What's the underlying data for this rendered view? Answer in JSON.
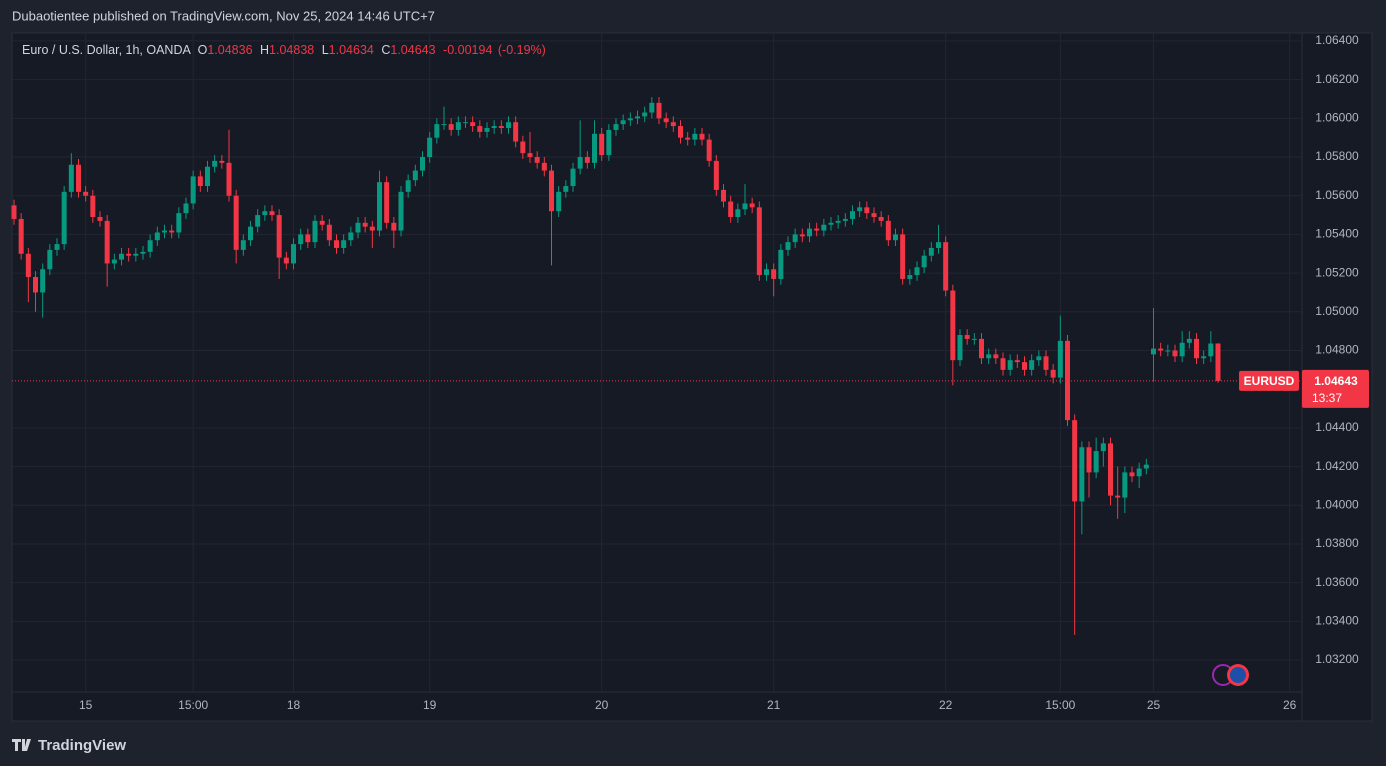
{
  "header": "Dubaotientee published on TradingView.com, Nov 25, 2024 14:46 UTC+7",
  "brand": "TradingView",
  "chart_data": {
    "type": "candlestick",
    "legend": {
      "symbol": "Euro / U.S. Dollar, 1h, OANDA",
      "open_label": "O",
      "high_label": "H",
      "low_label": "L",
      "close_label": "C"
    },
    "change": -0.00194,
    "change_percent": {
      "value": -0.19,
      "label": "(-0.19%)"
    },
    "countdown": "13:37",
    "up_color": "#089981",
    "down_color": "#f23645",
    "grid": true,
    "ylim": [
      1.03035,
      1.06441
    ],
    "yticks": [
      {
        "value": 1.064,
        "label": "1.06400"
      },
      {
        "value": 1.062,
        "label": "1.06200"
      },
      {
        "value": 1.06,
        "label": "1.06000"
      },
      {
        "value": 1.058,
        "label": "1.05800"
      },
      {
        "value": 1.056,
        "label": "1.05600"
      },
      {
        "value": 1.054,
        "label": "1.05400"
      },
      {
        "value": 1.052,
        "label": "1.05200"
      },
      {
        "value": 1.05,
        "label": "1.05000"
      },
      {
        "value": 1.048,
        "label": "1.04800"
      },
      {
        "value": 1.044,
        "label": "1.04400"
      },
      {
        "value": 1.042,
        "label": "1.04200"
      },
      {
        "value": 1.04,
        "label": "1.04000"
      },
      {
        "value": 1.038,
        "label": "1.03800"
      },
      {
        "value": 1.036,
        "label": "1.03600"
      },
      {
        "value": 1.034,
        "label": "1.03400"
      },
      {
        "value": 1.032,
        "label": "1.03200"
      }
    ],
    "categories": [
      null,
      null,
      null,
      null,
      null,
      null,
      null,
      null,
      null,
      null,
      "15",
      null,
      null,
      null,
      null,
      null,
      null,
      null,
      null,
      null,
      null,
      null,
      null,
      null,
      null,
      "15:00",
      null,
      null,
      null,
      null,
      null,
      null,
      null,
      null,
      null,
      null,
      null,
      null,
      null,
      "18",
      null,
      null,
      null,
      null,
      null,
      null,
      null,
      null,
      null,
      null,
      null,
      null,
      null,
      null,
      null,
      null,
      null,
      null,
      "19",
      null,
      null,
      null,
      null,
      null,
      null,
      null,
      null,
      null,
      null,
      null,
      null,
      null,
      null,
      null,
      null,
      null,
      null,
      null,
      null,
      null,
      null,
      null,
      "20",
      null,
      null,
      null,
      null,
      null,
      null,
      null,
      null,
      null,
      null,
      null,
      null,
      null,
      null,
      null,
      null,
      null,
      null,
      null,
      null,
      null,
      null,
      null,
      "21",
      null,
      null,
      null,
      null,
      null,
      null,
      null,
      null,
      null,
      null,
      null,
      null,
      null,
      null,
      null,
      null,
      null,
      null,
      null,
      null,
      null,
      null,
      null,
      "22",
      null,
      null,
      null,
      null,
      null,
      null,
      null,
      null,
      null,
      null,
      null,
      null,
      null,
      null,
      null,
      "15:00",
      null,
      null,
      null,
      null,
      null,
      null,
      null,
      null,
      null,
      null,
      null,
      null,
      "25",
      null,
      null,
      null,
      null,
      null,
      null,
      null,
      null,
      null,
      null,
      null,
      null,
      null,
      null,
      null,
      null,
      null,
      null,
      "26",
      null
    ],
    "series": [
      {
        "name": "EURUSD",
        "open": [
          1.0555,
          1.0548,
          1.053,
          1.0518,
          1.051,
          1.0522,
          1.0532,
          1.0535,
          1.0562,
          1.0576,
          1.0562,
          1.056,
          1.0549,
          1.0547,
          1.0525,
          1.0527,
          1.053,
          1.0529,
          1.053,
          1.0531,
          1.0537,
          1.0541,
          1.0542,
          1.0541,
          1.0551,
          1.0556,
          1.057,
          1.0565,
          1.0575,
          1.0578,
          1.0577,
          1.056,
          1.0532,
          1.0537,
          1.0544,
          1.055,
          1.0552,
          1.055,
          1.0528,
          1.0525,
          1.0535,
          1.054,
          1.0536,
          1.0547,
          1.0545,
          1.0537,
          1.0533,
          1.0537,
          1.0541,
          1.0546,
          1.0544,
          1.0542,
          1.0567,
          1.0546,
          1.0542,
          1.0562,
          1.0568,
          1.0573,
          1.058,
          1.059,
          1.0597,
          1.0597,
          1.0594,
          1.0598,
          1.0598,
          1.0596,
          1.0593,
          1.0595,
          1.0596,
          1.0595,
          1.0598,
          1.0588,
          1.0582,
          1.058,
          1.0577,
          1.0573,
          1.0552,
          1.0562,
          1.0565,
          1.0574,
          1.058,
          1.0577,
          1.0592,
          1.0581,
          1.0594,
          1.0597,
          1.0599,
          1.06,
          1.0601,
          1.0603,
          1.0608,
          1.06,
          1.0598,
          1.0596,
          1.059,
          1.0589,
          1.0592,
          1.0589,
          1.0578,
          1.0563,
          1.0557,
          1.0549,
          1.0553,
          1.0556,
          1.0554,
          1.0519,
          1.0522,
          1.0517,
          1.0532,
          1.0536,
          1.054,
          1.0539,
          1.0543,
          1.0542,
          1.0545,
          1.0546,
          1.0547,
          1.0548,
          1.0552,
          1.0554,
          1.0551,
          1.0549,
          1.0547,
          1.0537,
          1.054,
          1.0517,
          1.0519,
          1.0523,
          1.0529,
          1.0533,
          1.0536,
          1.0511,
          1.0475,
          1.0488,
          1.0486,
          1.0486,
          1.0476,
          1.0478,
          1.0476,
          1.047,
          1.0475,
          1.0474,
          1.047,
          1.0475,
          1.0477,
          1.047,
          1.0466,
          1.0485,
          1.0444,
          1.0402,
          1.043,
          1.0417,
          1.0428,
          1.0432,
          1.0405,
          1.0404,
          1.0417,
          1.0415,
          1.0419,
          1.0478,
          1.0481,
          1.048,
          1.048,
          1.0477,
          1.0484,
          1.0486,
          1.0476,
          1.0477,
          1.04836,
          null,
          null,
          null,
          null,
          null,
          null,
          null,
          null,
          null,
          null,
          null
        ],
        "high": [
          1.0558,
          1.0551,
          1.0533,
          1.0521,
          1.0525,
          1.0535,
          1.0538,
          1.0565,
          1.0582,
          1.0579,
          1.0565,
          1.0563,
          1.0552,
          1.055,
          1.053,
          1.0533,
          1.0533,
          1.0533,
          1.0534,
          1.054,
          1.0544,
          1.0545,
          1.0545,
          1.0554,
          1.0559,
          1.0573,
          1.0573,
          1.0578,
          1.0581,
          1.0581,
          1.0594,
          1.0563,
          1.054,
          1.0547,
          1.0553,
          1.0555,
          1.0555,
          1.0553,
          1.0531,
          1.0538,
          1.0543,
          1.0543,
          1.055,
          1.055,
          1.0548,
          1.054,
          1.054,
          1.0544,
          1.0549,
          1.0549,
          1.0547,
          1.0573,
          1.057,
          1.0549,
          1.0565,
          1.0571,
          1.0576,
          1.0583,
          1.0593,
          1.06,
          1.0606,
          1.06,
          1.0601,
          1.0601,
          1.0601,
          1.0599,
          1.0598,
          1.0599,
          1.0599,
          1.0601,
          1.0601,
          1.0591,
          1.0593,
          1.0583,
          1.058,
          1.0576,
          1.0565,
          1.0568,
          1.0577,
          1.0599,
          1.0583,
          1.0599,
          1.0595,
          1.0597,
          1.06,
          1.0602,
          1.0603,
          1.0604,
          1.0606,
          1.0611,
          1.0611,
          1.0603,
          1.0601,
          1.0599,
          1.0593,
          1.0595,
          1.0595,
          1.0592,
          1.0581,
          1.0566,
          1.056,
          1.0556,
          1.0566,
          1.0559,
          1.0557,
          1.0525,
          1.0525,
          1.0535,
          1.0539,
          1.0543,
          1.0543,
          1.0546,
          1.0546,
          1.0548,
          1.0549,
          1.055,
          1.0551,
          1.0555,
          1.0557,
          1.0557,
          1.0554,
          1.0552,
          1.055,
          1.0543,
          1.0543,
          1.0522,
          1.0526,
          1.0532,
          1.0536,
          1.0545,
          1.0539,
          1.0514,
          1.0491,
          1.0491,
          1.0489,
          1.0489,
          1.0481,
          1.0481,
          1.0479,
          1.0478,
          1.0478,
          1.0477,
          1.0478,
          1.048,
          1.048,
          1.0473,
          1.0498,
          1.0488,
          1.0447,
          1.0433,
          1.0433,
          1.0435,
          1.0435,
          1.0435,
          1.042,
          1.042,
          1.042,
          1.0422,
          1.0424,
          1.0502,
          1.0484,
          1.0483,
          1.0483,
          1.049,
          1.049,
          1.0489,
          1.048,
          1.049,
          1.04838,
          null,
          null,
          null,
          null,
          null,
          null,
          null,
          null,
          null,
          null,
          null
        ],
        "low": [
          1.0545,
          1.0527,
          1.0505,
          1.05,
          1.0497,
          1.0519,
          1.0529,
          1.0532,
          1.0559,
          1.0559,
          1.0557,
          1.0546,
          1.0544,
          1.0513,
          1.0522,
          1.0524,
          1.0526,
          1.0526,
          1.0527,
          1.0528,
          1.0534,
          1.0538,
          1.0538,
          1.0538,
          1.0548,
          1.0553,
          1.0562,
          1.0562,
          1.0572,
          1.0574,
          1.0557,
          1.0525,
          1.0529,
          1.0534,
          1.0541,
          1.0547,
          1.0547,
          1.0517,
          1.0522,
          1.0522,
          1.0532,
          1.0533,
          1.0533,
          1.0542,
          1.0534,
          1.053,
          1.053,
          1.0534,
          1.0538,
          1.0541,
          1.0533,
          1.0539,
          1.0543,
          1.0533,
          1.0539,
          1.0559,
          1.0565,
          1.057,
          1.0577,
          1.0587,
          1.0594,
          1.0591,
          1.0591,
          1.0595,
          1.0593,
          1.059,
          1.059,
          1.0592,
          1.0592,
          1.0592,
          1.0585,
          1.0579,
          1.0577,
          1.0574,
          1.057,
          1.0524,
          1.0549,
          1.0559,
          1.0562,
          1.0571,
          1.0574,
          1.0574,
          1.0578,
          1.0578,
          1.0591,
          1.0594,
          1.0596,
          1.0597,
          1.0598,
          1.06,
          1.0597,
          1.0595,
          1.0593,
          1.0587,
          1.0586,
          1.0586,
          1.0586,
          1.0575,
          1.056,
          1.0554,
          1.0546,
          1.0546,
          1.055,
          1.0551,
          1.0516,
          1.0516,
          1.0508,
          1.0514,
          1.0529,
          1.0533,
          1.0536,
          1.0536,
          1.0539,
          1.0539,
          1.0542,
          1.0543,
          1.0544,
          1.0545,
          1.0549,
          1.0548,
          1.0546,
          1.0544,
          1.0534,
          1.0534,
          1.0514,
          1.0514,
          1.0516,
          1.052,
          1.0526,
          1.053,
          1.0508,
          1.0462,
          1.0472,
          1.0483,
          1.0483,
          1.0473,
          1.0473,
          1.0473,
          1.0467,
          1.0467,
          1.0471,
          1.0467,
          1.0467,
          1.0472,
          1.0467,
          1.0463,
          1.0463,
          1.0441,
          1.0333,
          1.0385,
          1.0404,
          1.0414,
          1.042,
          1.04,
          1.0393,
          1.0396,
          1.0412,
          1.0409,
          1.0416,
          1.0464,
          1.0477,
          1.0477,
          1.0474,
          1.0474,
          1.0481,
          1.0473,
          1.0473,
          1.0474,
          1.04634,
          null,
          null,
          null,
          null,
          null,
          null,
          null,
          null,
          null,
          null,
          null
        ],
        "close": [
          1.0548,
          1.053,
          1.0518,
          1.051,
          1.0522,
          1.0532,
          1.0535,
          1.0562,
          1.0576,
          1.0562,
          1.056,
          1.0549,
          1.0547,
          1.0525,
          1.0527,
          1.053,
          1.0529,
          1.053,
          1.0531,
          1.0537,
          1.0541,
          1.0542,
          1.0541,
          1.0551,
          1.0556,
          1.057,
          1.0565,
          1.0575,
          1.0578,
          1.0577,
          1.056,
          1.0532,
          1.0537,
          1.0544,
          1.055,
          1.0552,
          1.055,
          1.0528,
          1.0525,
          1.0535,
          1.054,
          1.0536,
          1.0547,
          1.0545,
          1.0537,
          1.0533,
          1.0537,
          1.0541,
          1.0546,
          1.0544,
          1.0542,
          1.0567,
          1.0546,
          1.0542,
          1.0562,
          1.0568,
          1.0573,
          1.058,
          1.059,
          1.0597,
          1.0597,
          1.0594,
          1.0598,
          1.0598,
          1.0596,
          1.0593,
          1.0595,
          1.0596,
          1.0595,
          1.0598,
          1.0588,
          1.0582,
          1.058,
          1.0577,
          1.0573,
          1.0552,
          1.0562,
          1.0565,
          1.0574,
          1.058,
          1.0577,
          1.0592,
          1.0581,
          1.0594,
          1.0597,
          1.0599,
          1.06,
          1.0601,
          1.0603,
          1.0608,
          1.06,
          1.0598,
          1.0596,
          1.059,
          1.0589,
          1.0592,
          1.0589,
          1.0578,
          1.0563,
          1.0557,
          1.0549,
          1.0553,
          1.0556,
          1.0554,
          1.0519,
          1.0522,
          1.0517,
          1.0532,
          1.0536,
          1.054,
          1.0539,
          1.0543,
          1.0542,
          1.0545,
          1.0546,
          1.0547,
          1.0548,
          1.0552,
          1.0554,
          1.0551,
          1.0549,
          1.0547,
          1.0537,
          1.054,
          1.0517,
          1.0519,
          1.0523,
          1.0529,
          1.0533,
          1.0536,
          1.0511,
          1.0475,
          1.0488,
          1.0486,
          1.0486,
          1.0476,
          1.0478,
          1.0476,
          1.047,
          1.0475,
          1.0474,
          1.047,
          1.0475,
          1.0477,
          1.047,
          1.0466,
          1.0485,
          1.0444,
          1.0402,
          1.043,
          1.0417,
          1.0428,
          1.0432,
          1.0405,
          1.0404,
          1.0417,
          1.0415,
          1.0419,
          1.0421,
          1.0481,
          1.048,
          1.048,
          1.0477,
          1.0484,
          1.0486,
          1.0476,
          1.0477,
          1.04836,
          1.04643,
          null,
          null,
          null,
          null,
          null,
          null,
          null,
          null,
          null,
          null,
          null
        ]
      }
    ]
  }
}
